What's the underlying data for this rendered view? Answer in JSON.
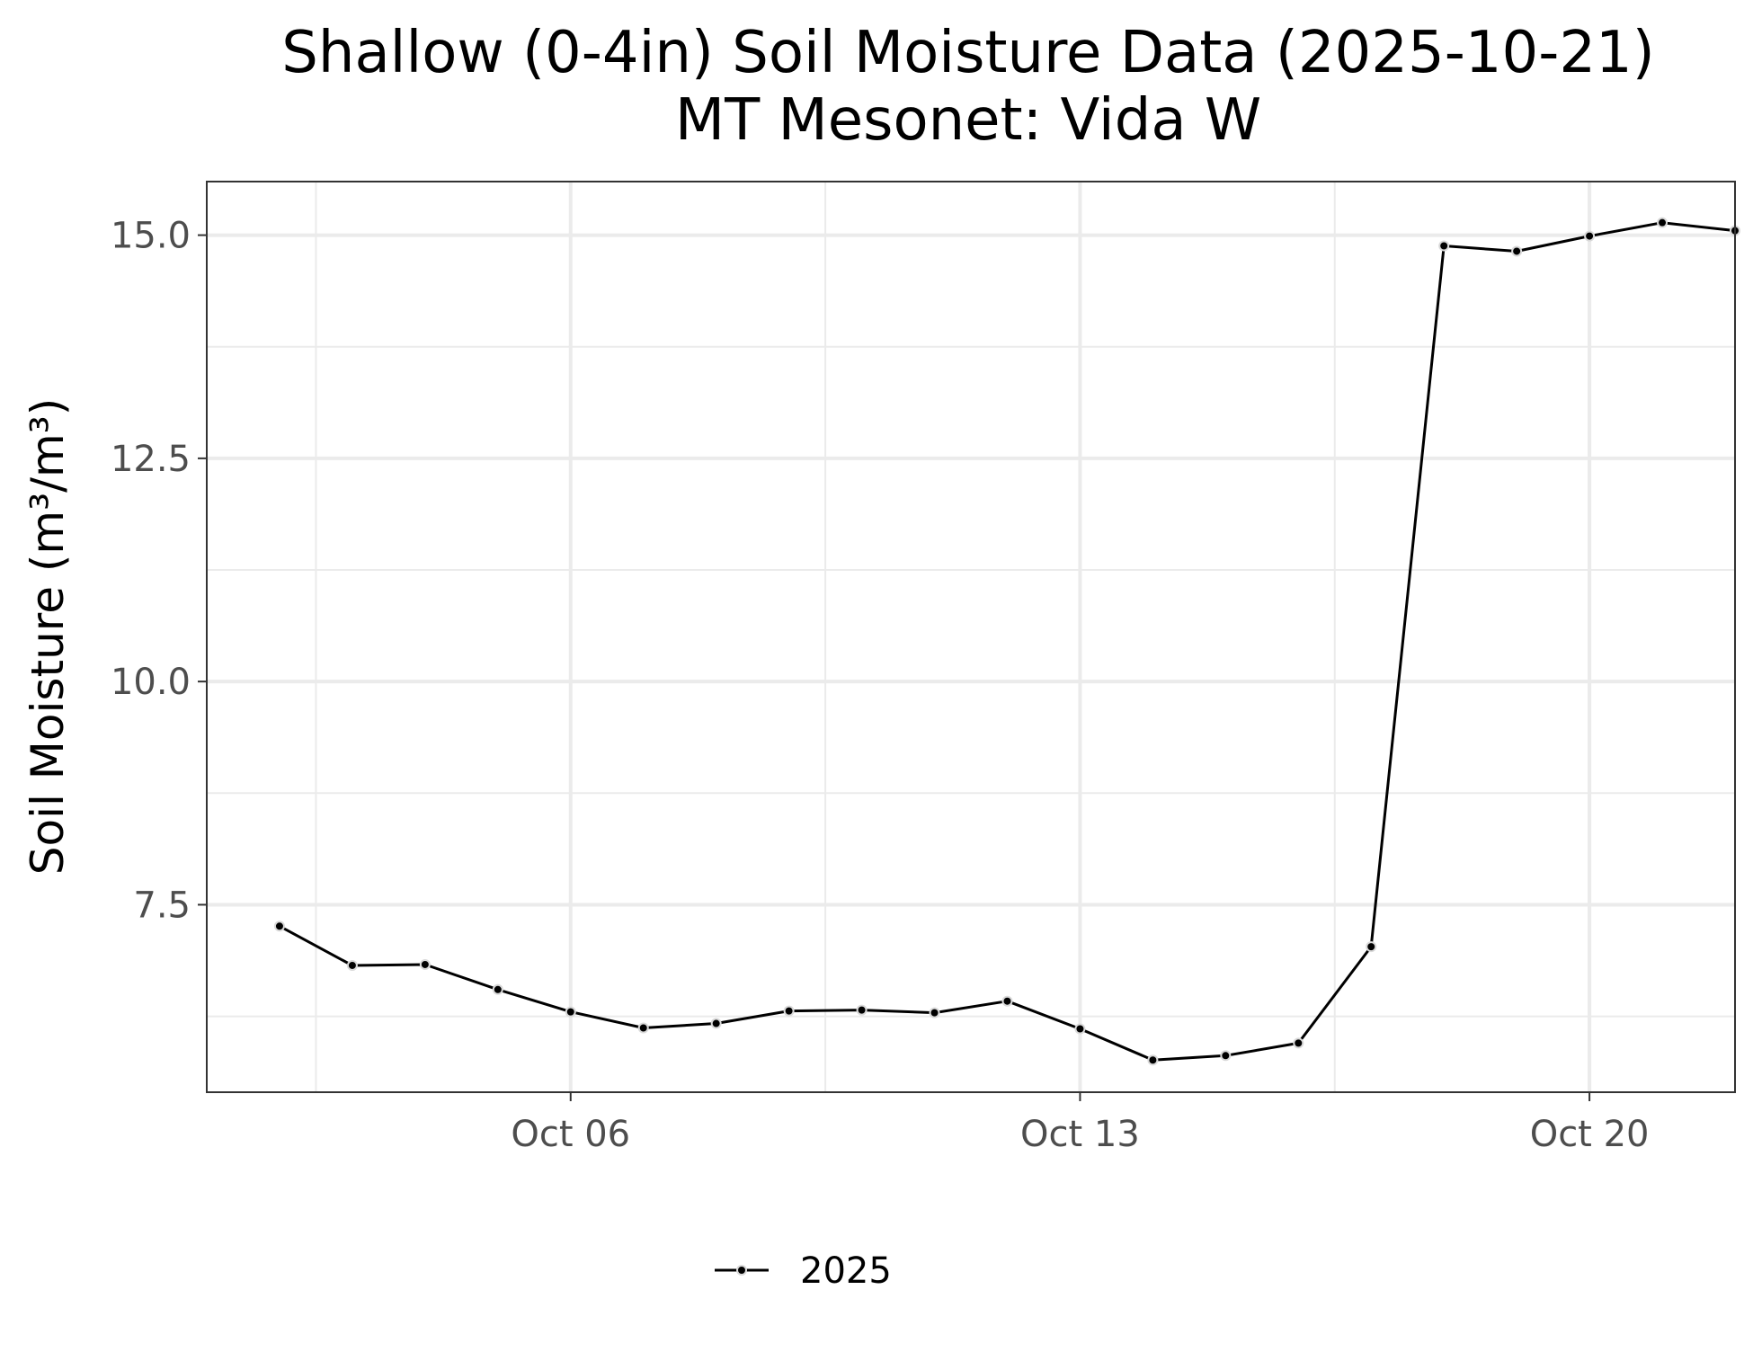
{
  "chart_data": {
    "type": "line",
    "title": "Shallow (0-4in) Soil Moisture Data (2025-10-21)",
    "subtitle": "MT Mesonet: Vida W",
    "xlabel": "",
    "ylabel": "Soil Moisture (m³/m³)",
    "x_ticks": [
      {
        "date": "2025-10-06",
        "label": "Oct 06"
      },
      {
        "date": "2025-10-13",
        "label": "Oct 13"
      },
      {
        "date": "2025-10-20",
        "label": "Oct 20"
      }
    ],
    "y_ticks": [
      {
        "value": 7.5,
        "label": "7.5"
      },
      {
        "value": 10.0,
        "label": "10.0"
      },
      {
        "value": 12.5,
        "label": "12.5"
      },
      {
        "value": 15.0,
        "label": "15.0"
      }
    ],
    "xlim": [
      "2025-10-01",
      "2025-10-22"
    ],
    "ylim": [
      5.4,
      15.6
    ],
    "grid": true,
    "legend_position": "bottom",
    "series": [
      {
        "name": "2025",
        "color": "#000000",
        "point_fill": "#000000",
        "point_outline": "#d9d9d9",
        "x": [
          "2025-10-02",
          "2025-10-03",
          "2025-10-04",
          "2025-10-05",
          "2025-10-06",
          "2025-10-07",
          "2025-10-08",
          "2025-10-09",
          "2025-10-10",
          "2025-10-11",
          "2025-10-12",
          "2025-10-13",
          "2025-10-14",
          "2025-10-15",
          "2025-10-16",
          "2025-10-17",
          "2025-10-18",
          "2025-10-19",
          "2025-10-20",
          "2025-10-21",
          "2025-10-22"
        ],
        "y": [
          7.26,
          6.82,
          6.83,
          6.55,
          6.3,
          6.12,
          6.17,
          6.31,
          6.32,
          6.29,
          6.42,
          6.11,
          5.76,
          5.81,
          5.95,
          7.03,
          14.88,
          14.82,
          14.99,
          15.14,
          15.05
        ]
      }
    ]
  }
}
